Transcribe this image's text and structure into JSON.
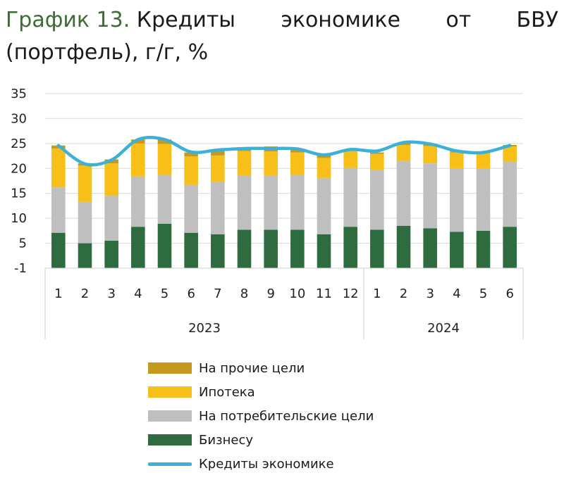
{
  "title": {
    "prefix": "График 13.",
    "words": [
      "Кредиты",
      "экономике",
      "от",
      "БВУ"
    ],
    "line2": "(портфель), г/г, %"
  },
  "chart_data": {
    "type": "bar",
    "stacked": true,
    "categories": [
      "1",
      "2",
      "3",
      "4",
      "5",
      "6",
      "7",
      "8",
      "9",
      "10",
      "11",
      "12",
      "1",
      "2",
      "3",
      "4",
      "5",
      "6"
    ],
    "year_groups": [
      {
        "label": "2023",
        "count": 12
      },
      {
        "label": "2024",
        "count": 6
      }
    ],
    "yticks": [
      35,
      30,
      25,
      20,
      15,
      10,
      5,
      -1
    ],
    "ylim": [
      -1,
      35
    ],
    "grid": "horizontal",
    "series": [
      {
        "name": "Бизнесу",
        "color": "#2e6b3f",
        "values": [
          7.1,
          5.0,
          5.5,
          8.3,
          8.9,
          7.1,
          6.8,
          7.7,
          7.7,
          7.7,
          6.8,
          8.3,
          7.7,
          8.5,
          8.0,
          7.3,
          7.5,
          8.3
        ]
      },
      {
        "name": "На потребительские цели",
        "color": "#bfbfbf",
        "values": [
          9.1,
          8.3,
          9.0,
          10.1,
          9.8,
          9.6,
          10.5,
          10.8,
          10.8,
          11.0,
          11.3,
          11.8,
          12.0,
          13.0,
          13.0,
          12.7,
          12.5,
          13.0
        ]
      },
      {
        "name": "Ипотека",
        "color": "#f7bf17",
        "values": [
          7.8,
          7.3,
          6.5,
          6.6,
          6.2,
          5.7,
          5.3,
          5.0,
          4.9,
          4.5,
          4.0,
          3.5,
          3.2,
          3.2,
          3.5,
          3.2,
          3.1,
          3.1
        ]
      },
      {
        "name": "На прочие цели",
        "color": "#c39a1d",
        "values": [
          0.6,
          0.4,
          0.8,
          0.8,
          0.9,
          0.8,
          1.2,
          0.6,
          1.0,
          0.6,
          0.6,
          0.2,
          0.3,
          0.3,
          0.3,
          0.2,
          0.2,
          0.3
        ]
      },
      {
        "name": "Кредиты экономике",
        "color": "#3db0d8",
        "type": "line",
        "values": [
          24.6,
          20.9,
          21.7,
          25.8,
          25.8,
          23.3,
          23.7,
          24.0,
          24.0,
          23.9,
          22.7,
          23.8,
          23.5,
          25.2,
          24.9,
          23.5,
          23.2,
          24.6
        ]
      }
    ],
    "legend_order": [
      "На прочие цели",
      "Ипотека",
      "На потребительские цели",
      "Бизнесу",
      "Кредиты экономике"
    ],
    "legend_position": "bottom"
  }
}
